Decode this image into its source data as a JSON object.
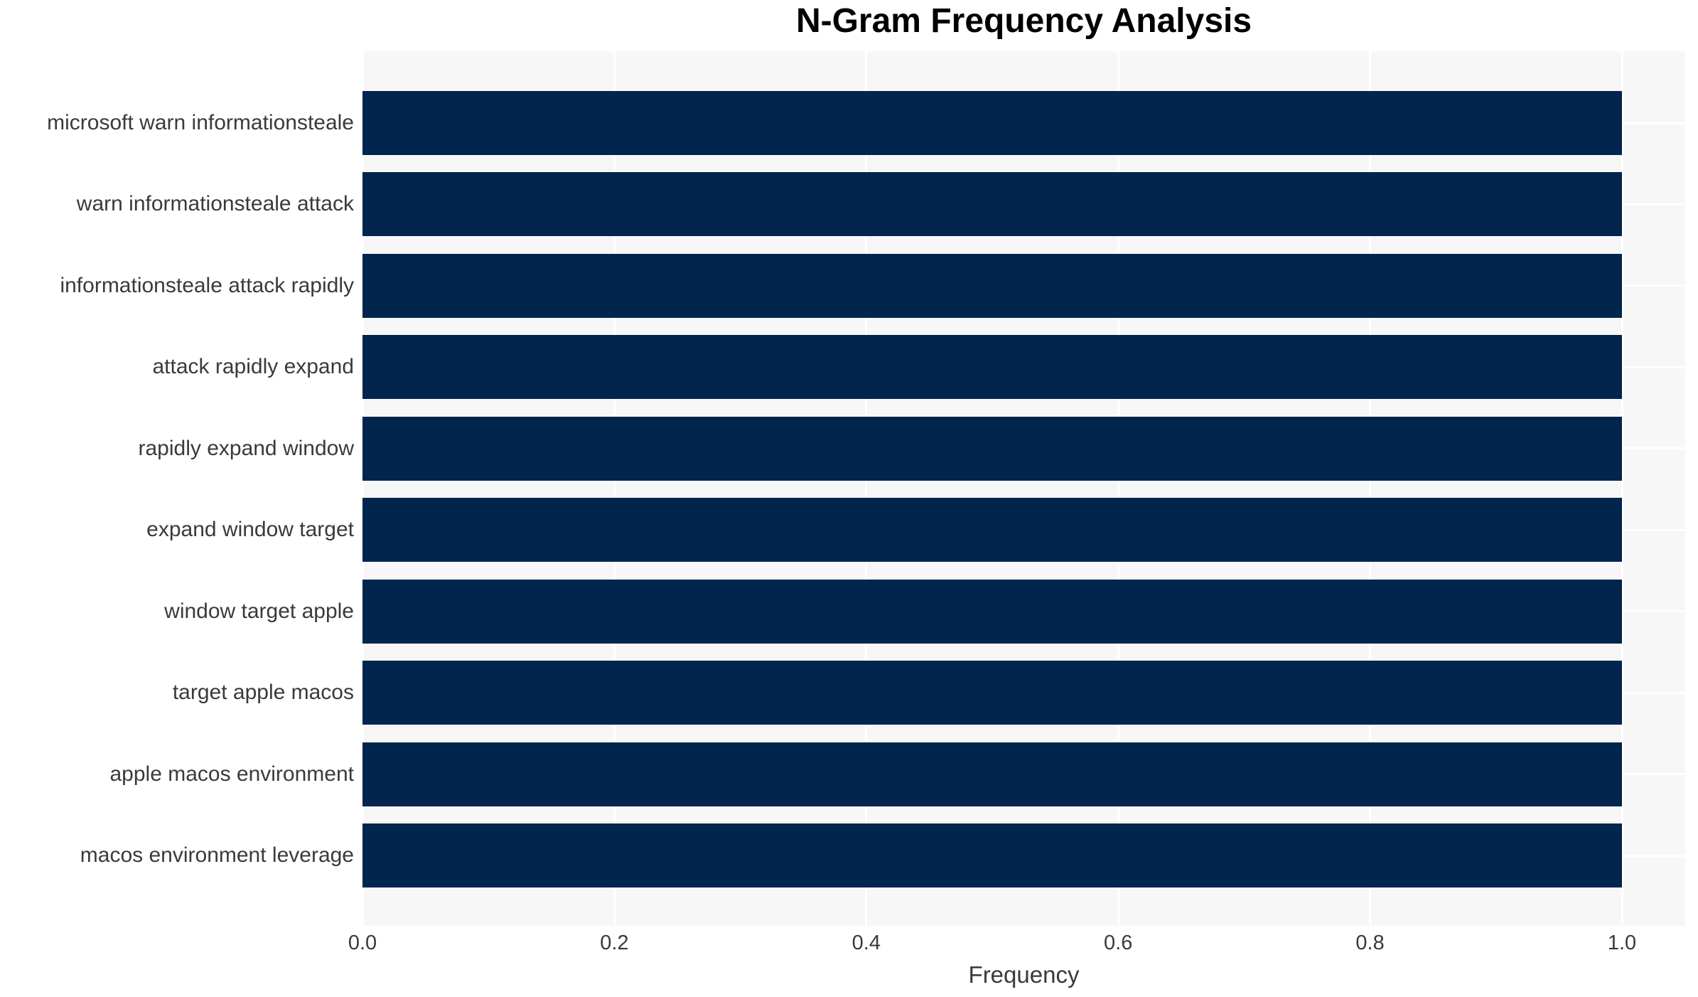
{
  "chart_data": {
    "type": "bar",
    "orientation": "horizontal",
    "title": "N-Gram Frequency Analysis",
    "xlabel": "Frequency",
    "ylabel": "",
    "categories": [
      "microsoft warn informationsteale",
      "warn informationsteale attack",
      "informationsteale attack rapidly",
      "attack rapidly expand",
      "rapidly expand window",
      "expand window target",
      "window target apple",
      "target apple macos",
      "apple macos environment",
      "macos environment leverage"
    ],
    "values": [
      1.0,
      1.0,
      1.0,
      1.0,
      1.0,
      1.0,
      1.0,
      1.0,
      1.0,
      1.0
    ],
    "x_ticks": [
      0.0,
      0.2,
      0.4,
      0.6,
      0.8,
      1.0
    ],
    "x_tick_labels": [
      "0.0",
      "0.2",
      "0.4",
      "0.6",
      "0.8",
      "1.0"
    ],
    "xlim": [
      0,
      1.05
    ],
    "grid": "on",
    "legend": "none",
    "colors": {
      "bar": "#02254e",
      "plot_background": "#f7f7f8",
      "gridline": "#ffffff",
      "figure_background": "#ffffff",
      "title_text": "#000000",
      "axis_text": "#3a3a3a"
    }
  }
}
